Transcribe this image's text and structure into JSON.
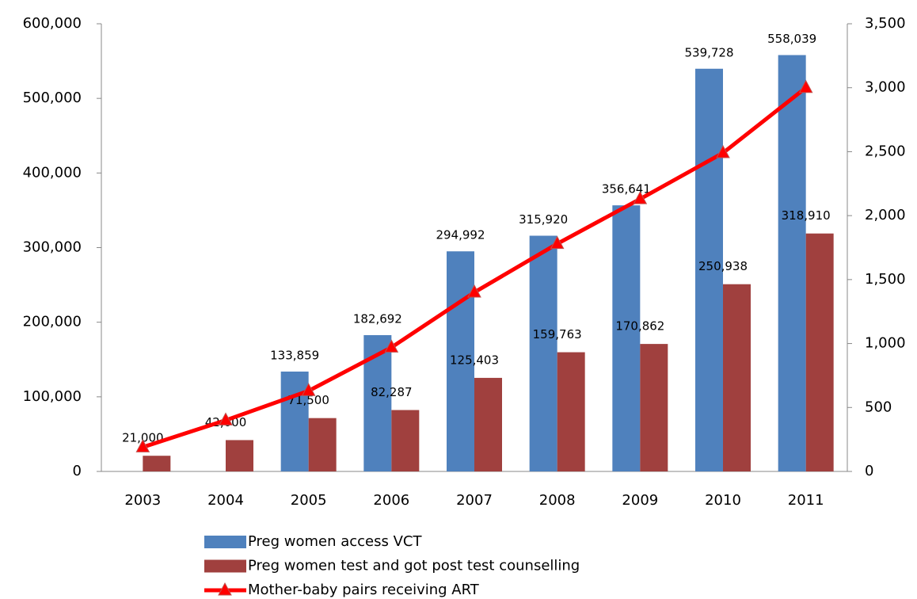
{
  "chart_data": {
    "type": "bar-line",
    "categories": [
      "2003",
      "2004",
      "2005",
      "2006",
      "2007",
      "2008",
      "2009",
      "2010",
      "2011"
    ],
    "series": [
      {
        "name": "Preg women access VCT",
        "color": "#4f81bd",
        "type": "bar",
        "values": [
          null,
          null,
          133859,
          182692,
          294992,
          315920,
          356641,
          539728,
          558039
        ],
        "value_labels": [
          null,
          null,
          "133,859",
          "182,692",
          "294,992",
          "315,920",
          "356,641",
          "539,728",
          "558,039"
        ]
      },
      {
        "name": "Preg women test and got post test counselling",
        "color": "#a0403e",
        "type": "bar",
        "values": [
          21000,
          42000,
          71500,
          82287,
          125403,
          159763,
          170862,
          250938,
          318910
        ],
        "value_labels": [
          "21,000",
          "42,000",
          "71,500",
          "82,287",
          "125,403",
          "159,763",
          "170,862",
          "250,938",
          "318,910"
        ]
      },
      {
        "name": "Mother-baby pairs receiving ART",
        "color": "#ff0000",
        "type": "line",
        "axis": "y2",
        "values": [
          190,
          400,
          630,
          970,
          1400,
          1780,
          2130,
          2490,
          3000
        ]
      }
    ],
    "ylim": [
      0,
      600000
    ],
    "yticks": [
      0,
      {
        "value": 100000,
        "label": "100,000"
      },
      {
        "value": 200000,
        "label": "200,000"
      },
      {
        "value": 300000,
        "label": "300,000"
      },
      {
        "value": 400000,
        "label": "400,000"
      },
      {
        "value": 500000,
        "label": "500,000"
      },
      {
        "value": 600000,
        "label": "600,000"
      }
    ],
    "y2lim": [
      0,
      3500
    ],
    "y2ticks": [
      0,
      500,
      {
        "value": 1000,
        "label": "1,000"
      },
      {
        "value": 1500,
        "label": "1,500"
      },
      {
        "value": 2000,
        "label": "2,000"
      },
      {
        "value": 2500,
        "label": "2,500"
      },
      {
        "value": 3000,
        "label": "3,000"
      },
      {
        "value": 3500,
        "label": "3,500"
      }
    ],
    "grid": false
  }
}
